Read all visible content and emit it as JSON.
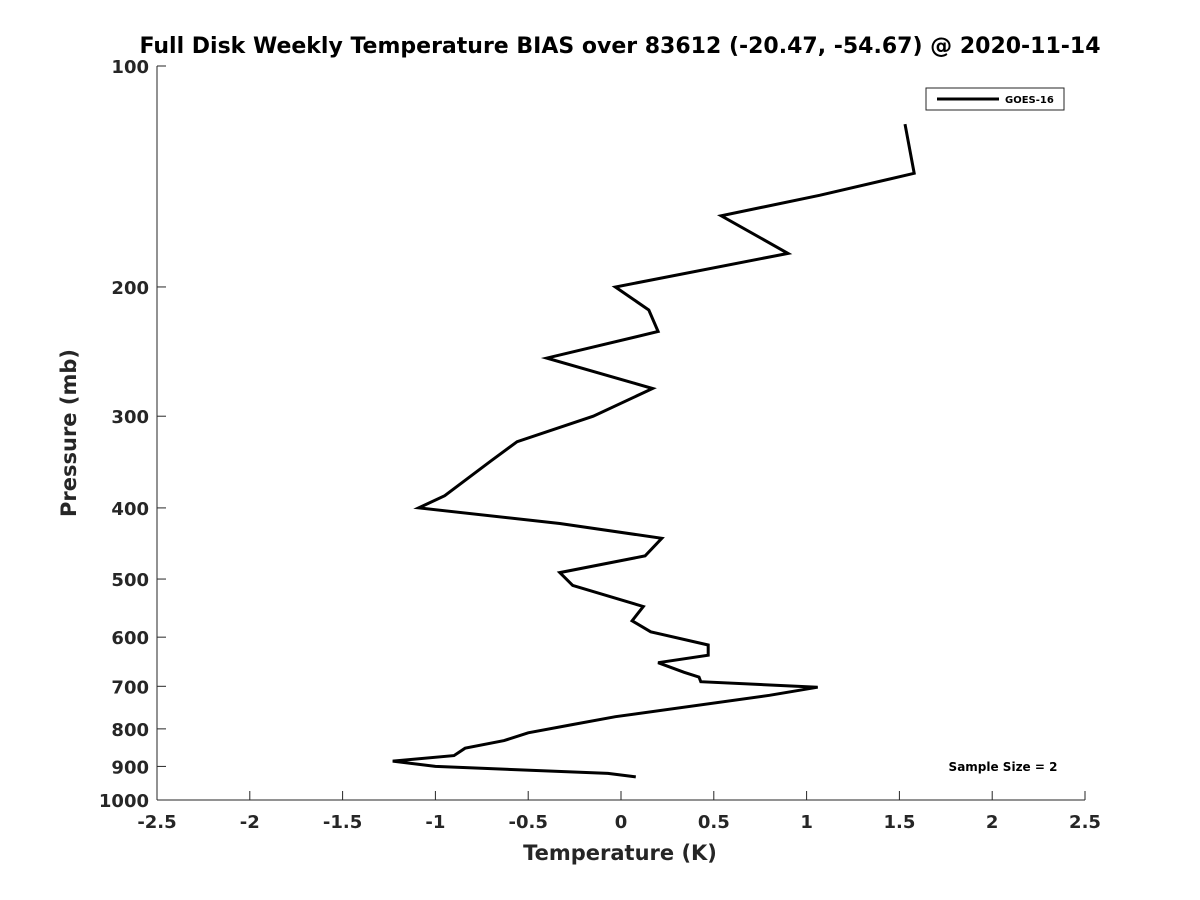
{
  "chart_data": {
    "type": "line",
    "title": "Full Disk Weekly Temperature BIAS over 83612 (-20.47, -54.67) @ 2020-11-14",
    "xlabel": "Temperature (K)",
    "ylabel": "Pressure (mb)",
    "xlim": [
      -2.5,
      2.5
    ],
    "ylim": [
      100,
      1000
    ],
    "yscale": "log",
    "y_reversed": true,
    "xticks": [
      -2.5,
      -2,
      -1.5,
      -1,
      -0.5,
      0,
      0.5,
      1,
      1.5,
      2,
      2.5
    ],
    "xtick_labels": [
      "-2.5",
      "-2",
      "-1.5",
      "-1",
      "-0.5",
      "0",
      "0.5",
      "1",
      "1.5",
      "2",
      "2.5"
    ],
    "yticks": [
      100,
      200,
      300,
      400,
      500,
      600,
      700,
      800,
      900,
      1000
    ],
    "ytick_labels": [
      "100",
      "200",
      "300",
      "400",
      "500",
      "600",
      "700",
      "800",
      "900",
      "1000"
    ],
    "grid": false,
    "legend_position": "top-right",
    "series": [
      {
        "name": "GOES-16",
        "color": "#000000",
        "x": [
          1.53,
          1.58,
          1.07,
          0.54,
          0.9,
          -0.03,
          0.15,
          0.2,
          -0.4,
          0.17,
          -0.15,
          -0.56,
          -0.7,
          -0.95,
          -1.09,
          -0.33,
          0.22,
          0.13,
          -0.33,
          -0.26,
          0.12,
          0.06,
          0.16,
          0.47,
          0.47,
          0.2,
          0.34,
          0.42,
          0.43,
          1.06,
          0.8,
          -0.03,
          -0.27,
          -0.5,
          -0.63,
          -0.84,
          -0.9,
          -1.23,
          -1.0,
          -0.07,
          0.08
        ],
        "y": [
          120,
          140,
          150,
          160,
          180,
          200,
          215,
          230,
          250,
          275,
          300,
          325,
          345,
          385,
          400,
          420,
          440,
          465,
          490,
          510,
          545,
          570,
          590,
          615,
          635,
          650,
          670,
          680,
          690,
          702,
          720,
          770,
          790,
          810,
          830,
          850,
          870,
          885,
          900,
          920,
          930
        ]
      }
    ],
    "annotations": [
      "Sample Size = 2"
    ]
  }
}
